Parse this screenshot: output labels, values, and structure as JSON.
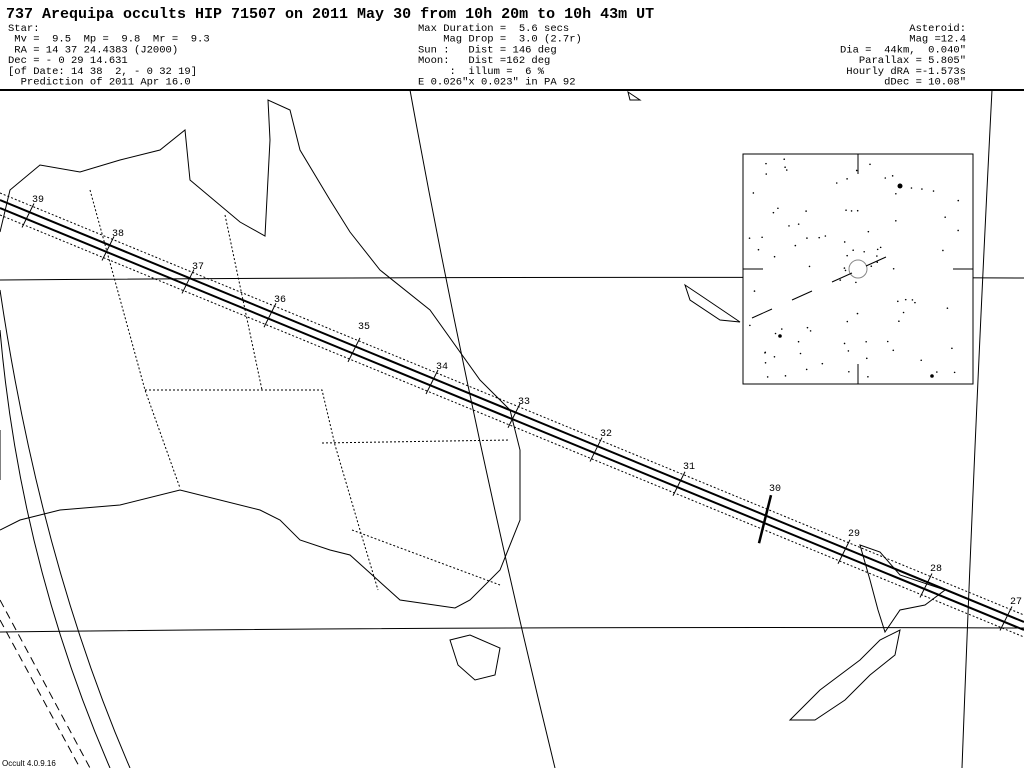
{
  "header": {
    "title": "737 Arequipa occults HIP 71507 on 2011 May 30 from 10h 20m to 10h 43m UT",
    "star": [
      "Star:",
      " Mv =  9.5  Mp =  9.8  Mr =  9.3",
      " RA = 14 37 24.4383 (J2000)",
      "Dec = - 0 29 14.631",
      "[of Date: 14 38  2, - 0 32 19]",
      "  Prediction of 2011 Apr 16.0"
    ],
    "event": [
      "Max Duration =  5.6 secs",
      "    Mag Drop =  3.0 (2.7r)",
      "Sun :   Dist = 146 deg",
      "Moon:   Dist =162 deg",
      "     :  illum =  6 %",
      "E 0.026\"x 0.023\" in PA 92"
    ],
    "asteroid": [
      "Asteroid:",
      "Mag =12.4",
      "Dia =  44km,  0.040\"",
      "Parallax = 5.805\"",
      "Hourly dRA =-1.573s",
      "dDec = 10.08\""
    ]
  },
  "path_labels": [
    "39",
    "38",
    "37",
    "36",
    "35",
    "34",
    "33",
    "32",
    "31",
    "30",
    "29",
    "28",
    "27"
  ],
  "footer": "Occult 4.0.9.16"
}
